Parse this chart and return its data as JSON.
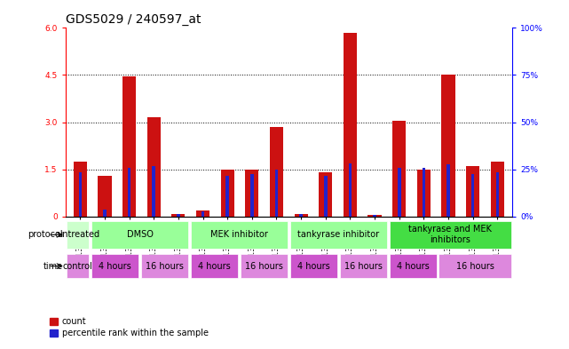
{
  "title": "GDS5029 / 240597_at",
  "samples": [
    "GSM1340521",
    "GSM1340522",
    "GSM1340523",
    "GSM1340524",
    "GSM1340531",
    "GSM1340532",
    "GSM1340527",
    "GSM1340528",
    "GSM1340535",
    "GSM1340536",
    "GSM1340525",
    "GSM1340526",
    "GSM1340533",
    "GSM1340534",
    "GSM1340529",
    "GSM1340530",
    "GSM1340537",
    "GSM1340538"
  ],
  "counts": [
    1.75,
    1.3,
    4.45,
    3.15,
    0.08,
    0.18,
    1.5,
    1.5,
    2.85,
    0.08,
    1.4,
    5.85,
    0.06,
    3.05,
    1.5,
    4.5,
    1.6,
    1.75
  ],
  "percentiles": [
    1.4,
    0.22,
    1.55,
    1.6,
    0.08,
    0.16,
    1.3,
    1.35,
    1.5,
    0.07,
    1.3,
    1.7,
    0.06,
    1.55,
    1.55,
    1.65,
    1.35,
    1.4
  ],
  "ylim_left": [
    0,
    6
  ],
  "ylim_right": [
    0,
    100
  ],
  "yticks_left": [
    0,
    1.5,
    3.0,
    4.5,
    6.0
  ],
  "yticks_right": [
    0,
    25,
    50,
    75,
    100
  ],
  "bar_color": "#cc1111",
  "pct_color": "#2222cc",
  "protocol_groups": [
    {
      "label": "untreated",
      "start": 0,
      "end": 1,
      "color": "#ccffcc"
    },
    {
      "label": "DMSO",
      "start": 1,
      "end": 5,
      "color": "#99ff99"
    },
    {
      "label": "MEK inhibitor",
      "start": 5,
      "end": 9,
      "color": "#99ff99"
    },
    {
      "label": "tankyrase inhibitor",
      "start": 9,
      "end": 13,
      "color": "#99ff99"
    },
    {
      "label": "tankyrase and MEK\ninhibitors",
      "start": 13,
      "end": 18,
      "color": "#44dd44"
    }
  ],
  "time_groups": [
    {
      "label": "control",
      "start": 0,
      "end": 1,
      "color": "#dd88dd"
    },
    {
      "label": "4 hours",
      "start": 1,
      "end": 3,
      "color": "#cc55cc"
    },
    {
      "label": "16 hours",
      "start": 3,
      "end": 5,
      "color": "#dd88dd"
    },
    {
      "label": "4 hours",
      "start": 5,
      "end": 7,
      "color": "#cc55cc"
    },
    {
      "label": "16 hours",
      "start": 7,
      "end": 9,
      "color": "#dd88dd"
    },
    {
      "label": "4 hours",
      "start": 9,
      "end": 11,
      "color": "#cc55cc"
    },
    {
      "label": "16 hours",
      "start": 11,
      "end": 13,
      "color": "#dd88dd"
    },
    {
      "label": "4 hours",
      "start": 13,
      "end": 15,
      "color": "#cc55cc"
    },
    {
      "label": "16 hours",
      "start": 15,
      "end": 18,
      "color": "#dd88dd"
    }
  ],
  "bg_color": "#ffffff",
  "title_fontsize": 10,
  "tick_fontsize": 6.5,
  "label_fontsize": 7,
  "row_fontsize": 7
}
